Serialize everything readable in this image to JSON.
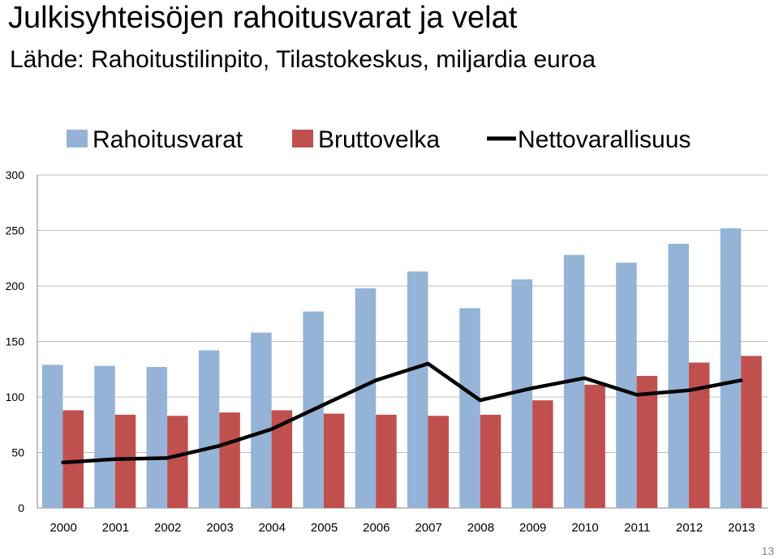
{
  "page": {
    "title": "Julkisyhteisöjen rahoitusvarat ja velat",
    "subtitle": "Lähde: Rahoitustilinpito, Tilastokeskus, miljardia euroa",
    "page_number": "13"
  },
  "colors": {
    "rahoitusvarat": "#95b3d7",
    "bruttovelka": "#c0504d",
    "nettovarallisuus": "#000000",
    "grid": "#bfbfbf"
  },
  "chart_data": {
    "type": "bar",
    "categories": [
      "2000",
      "2001",
      "2002",
      "2003",
      "2004",
      "2005",
      "2006",
      "2007",
      "2008",
      "2009",
      "2010",
      "2011",
      "2012",
      "2013"
    ],
    "series": [
      {
        "name": "Rahoitusvarat",
        "kind": "bar",
        "values": [
          129,
          128,
          127,
          142,
          158,
          177,
          198,
          213,
          180,
          206,
          228,
          221,
          238,
          252
        ]
      },
      {
        "name": "Bruttovelka",
        "kind": "bar",
        "values": [
          88,
          84,
          83,
          86,
          88,
          85,
          84,
          83,
          84,
          97,
          111,
          119,
          131,
          137
        ]
      },
      {
        "name": "Nettovarallisuus",
        "kind": "line",
        "values": [
          41,
          44,
          45,
          56,
          71,
          93,
          115,
          130,
          97,
          108,
          117,
          102,
          106,
          115
        ]
      }
    ],
    "yticks": [
      0,
      50,
      100,
      150,
      200,
      250,
      300
    ],
    "ylim": [
      0,
      300
    ],
    "legend": "top",
    "grid": true
  }
}
